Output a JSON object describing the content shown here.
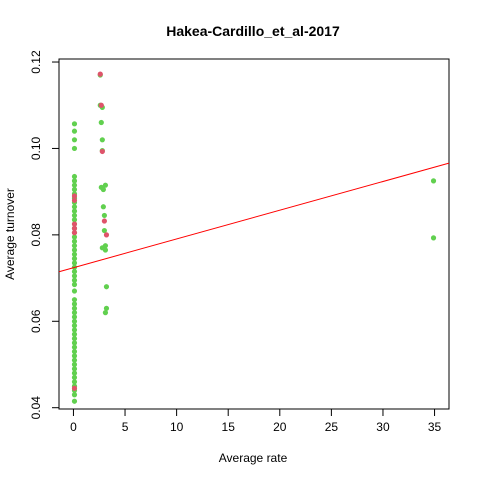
{
  "chart_data": {
    "type": "scatter",
    "title": "Hakea-Cardillo_et_al-2017",
    "xlabel": "Average rate",
    "ylabel": "Average turnover",
    "xlim": [
      -1.4,
      36.4
    ],
    "ylim": [
      0.0397,
      0.1207
    ],
    "x_ticks": [
      0,
      5,
      10,
      15,
      20,
      25,
      30,
      35
    ],
    "y_ticks": [
      0.04,
      0.06,
      0.08,
      0.1,
      0.12
    ],
    "grid": false,
    "legend": "none",
    "colors": {
      "green": "#61D04F",
      "red": "#DF536B",
      "line": "#FF0000"
    },
    "trend_line": {
      "intercept": 0.0724,
      "slope": 0.000665
    },
    "series": [
      {
        "color": "green",
        "points": [
          [
            0.1,
            0.1057
          ],
          [
            0.1,
            0.104
          ],
          [
            0.1,
            0.102
          ],
          [
            0.1,
            0.1
          ],
          [
            0.1,
            0.0935
          ],
          [
            0.1,
            0.0925
          ],
          [
            0.1,
            0.0915
          ],
          [
            0.1,
            0.0905
          ],
          [
            0.1,
            0.0895
          ],
          [
            0.1,
            0.0885
          ],
          [
            0.1,
            0.0875
          ],
          [
            0.1,
            0.0865
          ],
          [
            0.1,
            0.0855
          ],
          [
            0.1,
            0.0845
          ],
          [
            0.1,
            0.0835
          ],
          [
            0.1,
            0.0825
          ],
          [
            0.1,
            0.0815
          ],
          [
            0.1,
            0.0805
          ],
          [
            0.1,
            0.0795
          ],
          [
            0.1,
            0.0785
          ],
          [
            0.1,
            0.0775
          ],
          [
            0.1,
            0.0765
          ],
          [
            0.1,
            0.0755
          ],
          [
            0.1,
            0.0745
          ],
          [
            0.1,
            0.0735
          ],
          [
            0.1,
            0.0725
          ],
          [
            0.1,
            0.0715
          ],
          [
            0.1,
            0.0705
          ],
          [
            0.1,
            0.0695
          ],
          [
            0.1,
            0.0685
          ],
          [
            0.1,
            0.067
          ],
          [
            0.1,
            0.065
          ],
          [
            0.1,
            0.064
          ],
          [
            0.1,
            0.063
          ],
          [
            0.1,
            0.062
          ],
          [
            0.1,
            0.061
          ],
          [
            0.1,
            0.06
          ],
          [
            0.1,
            0.059
          ],
          [
            0.1,
            0.058
          ],
          [
            0.1,
            0.057
          ],
          [
            0.1,
            0.056
          ],
          [
            0.1,
            0.055
          ],
          [
            0.1,
            0.054
          ],
          [
            0.1,
            0.053
          ],
          [
            0.1,
            0.052
          ],
          [
            0.1,
            0.051
          ],
          [
            0.1,
            0.05
          ],
          [
            0.1,
            0.049
          ],
          [
            0.1,
            0.048
          ],
          [
            0.1,
            0.047
          ],
          [
            0.1,
            0.046
          ],
          [
            0.1,
            0.045
          ],
          [
            0.1,
            0.044
          ],
          [
            0.1,
            0.043
          ],
          [
            0.1,
            0.0415
          ],
          [
            2.6,
            0.117
          ],
          [
            2.6,
            0.11
          ],
          [
            2.8,
            0.1095
          ],
          [
            2.7,
            0.106
          ],
          [
            2.8,
            0.102
          ],
          [
            2.8,
            0.0995
          ],
          [
            2.7,
            0.091
          ],
          [
            2.9,
            0.0905
          ],
          [
            3.1,
            0.0915
          ],
          [
            2.9,
            0.0865
          ],
          [
            3.0,
            0.0845
          ],
          [
            3.0,
            0.081
          ],
          [
            2.8,
            0.077
          ],
          [
            3.1,
            0.0775
          ],
          [
            3.1,
            0.0765
          ],
          [
            3.2,
            0.068
          ],
          [
            3.2,
            0.063
          ],
          [
            3.1,
            0.062
          ],
          [
            34.9,
            0.0925
          ],
          [
            34.9,
            0.0793
          ]
        ]
      },
      {
        "color": "red",
        "points": [
          [
            0.1,
            0.089
          ],
          [
            0.1,
            0.088
          ],
          [
            0.1,
            0.0825
          ],
          [
            0.1,
            0.0815
          ],
          [
            0.1,
            0.0805
          ],
          [
            0.1,
            0.0445
          ],
          [
            2.6,
            0.1172
          ],
          [
            2.7,
            0.11
          ],
          [
            2.8,
            0.0993
          ],
          [
            3.0,
            0.0832
          ],
          [
            3.2,
            0.08
          ]
        ]
      }
    ]
  }
}
